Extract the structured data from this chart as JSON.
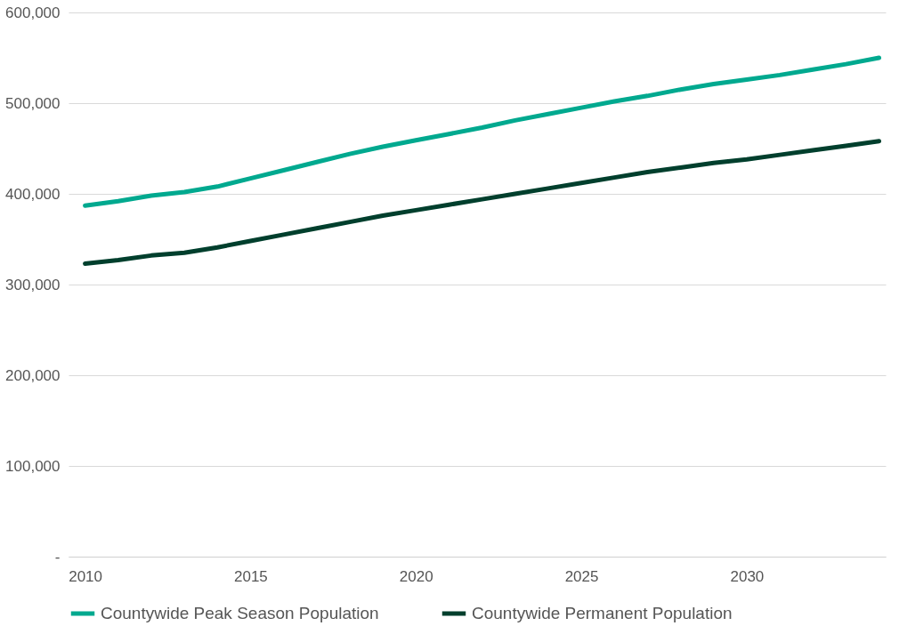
{
  "chart_data": {
    "type": "line",
    "x": [
      2010,
      2011,
      2012,
      2013,
      2014,
      2015,
      2016,
      2017,
      2018,
      2019,
      2020,
      2021,
      2022,
      2023,
      2024,
      2025,
      2026,
      2027,
      2028,
      2029,
      2030,
      2031,
      2032,
      2033,
      2034
    ],
    "series": [
      {
        "name": "Countywide Peak Season Population",
        "color": "#00a98f",
        "values": [
          387000,
          392000,
          398000,
          402000,
          408000,
          417000,
          426000,
          435000,
          444000,
          452000,
          459000,
          466000,
          473000,
          481000,
          488000,
          495000,
          502000,
          508000,
          515000,
          521000,
          526000,
          531000,
          537000,
          543000,
          550000
        ]
      },
      {
        "name": "Countywide Permanent Population",
        "color": "#003f2d",
        "values": [
          323000,
          327000,
          332000,
          335000,
          341000,
          348000,
          355000,
          362000,
          369000,
          376000,
          382000,
          388000,
          394000,
          400000,
          406000,
          412000,
          418000,
          424000,
          429000,
          434000,
          438000,
          443000,
          448000,
          453000,
          458000
        ]
      }
    ],
    "xlim": [
      2009.5,
      2034.2
    ],
    "xticks": [
      2010,
      2015,
      2020,
      2025,
      2030
    ],
    "ylim": [
      0,
      600000
    ],
    "yticks": [
      {
        "value": 0,
        "label": "-"
      },
      {
        "value": 100000,
        "label": "100,000"
      },
      {
        "value": 200000,
        "label": "200,000"
      },
      {
        "value": 300000,
        "label": "300,000"
      },
      {
        "value": 400000,
        "label": "400,000"
      },
      {
        "value": 500000,
        "label": "500,000"
      },
      {
        "value": 600000,
        "label": "600,000"
      }
    ],
    "grid": "y",
    "legend": "bottom",
    "marker": "none",
    "line_style": "solid"
  }
}
